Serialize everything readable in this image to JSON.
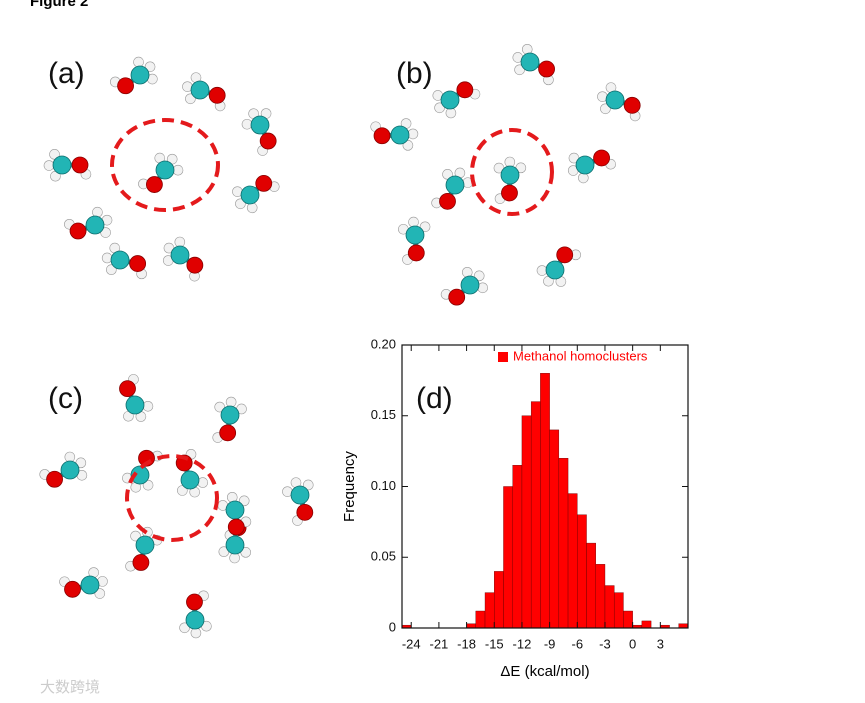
{
  "header": {
    "title": "Figure 2"
  },
  "panels": {
    "a": "(a)",
    "b": "(b)",
    "c": "(c)",
    "d": "(d)"
  },
  "watermark": "大数跨境",
  "chart_data": {
    "type": "histogram",
    "xlabel": "ΔE (kcal/mol)",
    "ylabel": "Frequency",
    "bins": [
      -25,
      -24,
      -23,
      -22,
      -21,
      -20,
      -19,
      -18,
      -17,
      -16,
      -15,
      -14,
      -13,
      -12,
      -11,
      -10,
      -9,
      -8,
      -7,
      -6,
      -5,
      -4,
      -3,
      -2,
      -1,
      0,
      1,
      2,
      3,
      4,
      5,
      6
    ],
    "series": [
      {
        "name": "Methanol homoclusters",
        "color": "#ff0000",
        "values": [
          0.002,
          0,
          0,
          0,
          0,
          0,
          0,
          0.003,
          0.012,
          0.025,
          0.04,
          0.1,
          0.115,
          0.15,
          0.16,
          0.18,
          0.14,
          0.12,
          0.095,
          0.08,
          0.06,
          0.045,
          0.03,
          0.025,
          0.012,
          0.002,
          0.005,
          0,
          0.002,
          0,
          0.003
        ]
      }
    ],
    "xlim": [
      -25,
      6
    ],
    "xticks": [
      -24,
      -21,
      -18,
      -15,
      -12,
      -9,
      -6,
      -3,
      0,
      3
    ],
    "ylim": [
      0,
      0.2
    ],
    "yticks": [
      0,
      0.05,
      {
        "value": 0.1,
        "label": "0.10"
      },
      0.15,
      {
        "value": 0.2,
        "label": "0.20"
      }
    ],
    "legend": "upper right"
  }
}
